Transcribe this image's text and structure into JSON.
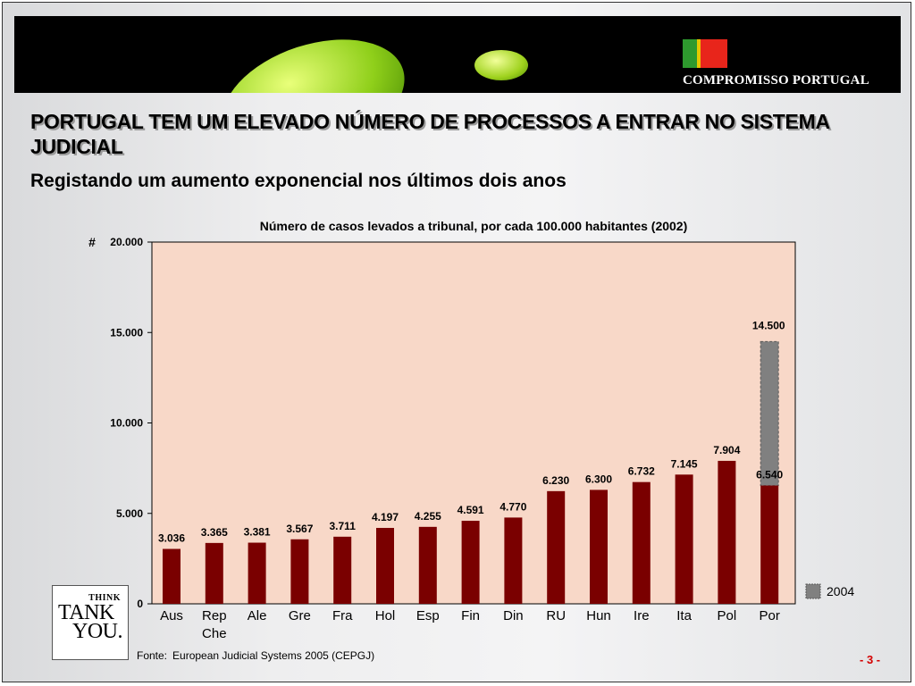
{
  "banner": {
    "brand": "COMPROMISSO PORTUGAL",
    "flag_colors": [
      "#2e9a2e",
      "#e5c800",
      "#e8251b",
      "#e8251b"
    ]
  },
  "title": "PORTUGAL TEM UM ELEVADO NÚMERO DE PROCESSOS A ENTRAR NO SISTEMA JUDICIAL",
  "subtitle": "Registando um aumento exponencial nos últimos dois anos",
  "chart_data": {
    "type": "bar",
    "title": "Número de casos levados a tribunal, por cada 100.000 habitantes (2002)",
    "ylabel": "#",
    "ylim": [
      0,
      20000
    ],
    "yticks": [
      0,
      5000,
      10000,
      15000,
      20000
    ],
    "ytick_labels": [
      "0",
      "5.000",
      "10.000",
      "15.000",
      "20.000"
    ],
    "categories": [
      "Aus",
      "Rep Che",
      "Ale",
      "Gre",
      "Fra",
      "Hol",
      "Esp",
      "Fin",
      "Din",
      "RU",
      "Hun",
      "Ire",
      "Ita",
      "Pol",
      "Por"
    ],
    "series": [
      {
        "values": [
          3036,
          3365,
          3381,
          3567,
          3711,
          4197,
          4255,
          4591,
          4770,
          6230,
          6300,
          6732,
          7145,
          7904,
          6540
        ],
        "labels": [
          "3.036",
          "3.365",
          "3.381",
          "3.567",
          "3.711",
          "4.197",
          "4.255",
          "4.591",
          "4.770",
          "6.230",
          "6.300",
          "6.732",
          "7.145",
          "7.904",
          "6.540"
        ],
        "color": "#7a0000"
      },
      {
        "name": "2004",
        "category": "Por",
        "value": 14500,
        "label": "14.500",
        "color": "#808080"
      }
    ],
    "plot_background": "#f8d8c8",
    "legend_placement": "bottom-right",
    "grid": false
  },
  "source": {
    "label": "Fonte:",
    "text": "European Judicial Systems 2005 (CEPGJ)"
  },
  "page_number": "- 3 -",
  "logo": {
    "line1": "THINK",
    "line2": "TANK",
    "line3": "YOU."
  }
}
